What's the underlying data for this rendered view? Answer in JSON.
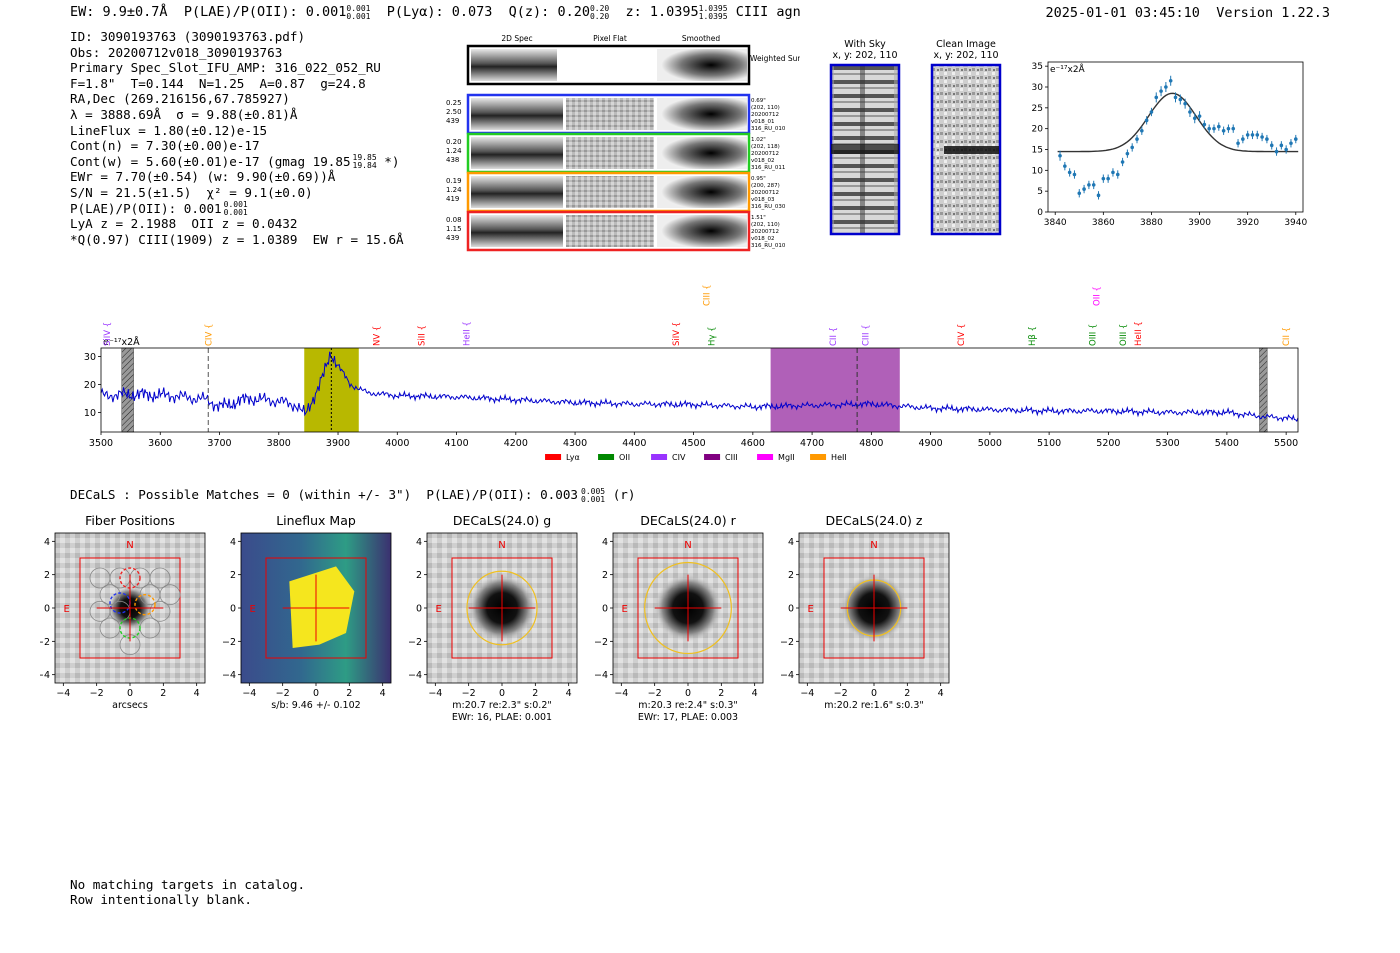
{
  "header": {
    "ew": "EW: 9.9±0.7Å",
    "plae": "P(LAE)/P(OII): 0.001",
    "plae_hi": "0.001",
    "plae_lo": "0.001",
    "plya": "P(Lyα): 0.073",
    "qz": "Q(z): 0.20",
    "qz_hi": "0.20",
    "qz_lo": "0.20",
    "z": "z: 1.0395",
    "z_hi": "1.0395",
    "z_lo": "1.0395",
    "line": "CIII",
    "agn": "agn",
    "timestamp": "2025-01-01 03:45:10",
    "version": "Version 1.22.3"
  },
  "info": [
    "ID: 3090193763 (3090193763.pdf)",
    "Obs: 20200712v018_3090193763",
    "Primary Spec_Slot_IFU_AMP: 316_022_052_RU",
    "F=1.8\"  T=0.144  N=1.25  A=0.87  g=24.8",
    "RA,Dec (269.216156,67.785927)",
    "λ = 3888.69Å  σ = 9.88(±0.81)Å",
    "LineFlux = 1.80(±0.12)e-15",
    "Cont(n) = 7.30(±0.00)e-17",
    "Cont(w) = 5.60(±0.01)e-17 (gmag 19.85",
    "EWr = 7.70(±0.54) (w: 9.90(±0.69))Å",
    "S/N = 21.5(±1.5)  χ² = 9.1(±0.0)",
    "P(LAE)/P(OII): 0.001",
    "LyA z = 2.1988  OII z = 0.0432",
    "*Q(0.97) CIII(1909) z = 1.0389  EW r = 15.6Å"
  ],
  "info_extras": {
    "gmag_hi": "19.85",
    "gmag_lo": "19.84",
    "gmag_close": "*)",
    "plae_hi": "0.001",
    "plae_lo": "0.001"
  },
  "cutouts": {
    "columns": [
      "2D Spec",
      "Pixel Flat",
      "Smoothed"
    ],
    "weighted_label": "Weighted Sum",
    "rows": [
      {
        "left": [
          "0.25",
          "2.50",
          "439"
        ],
        "right": [
          "0.69\"",
          "(202, 110)",
          "20200712",
          "v018_01",
          "316_RU_010"
        ],
        "color": "#2233ee"
      },
      {
        "left": [
          "0.20",
          "1.24",
          "438"
        ],
        "right": [
          "1.02\"",
          "(202, 118)",
          "20200712",
          "v018_02",
          "316_RU_011"
        ],
        "color": "#22cc22"
      },
      {
        "left": [
          "0.19",
          "1.24",
          "419"
        ],
        "right": [
          "0.95\"",
          "(200, 287)",
          "20200712",
          "v018_03",
          "316_RU_030"
        ],
        "color": "#ff9900"
      },
      {
        "left": [
          "0.08",
          "1.15",
          "439"
        ],
        "right": [
          "1.51\"",
          "(202, 110)",
          "20200712",
          "v018_02",
          "316_RU_010"
        ],
        "color": "#ee2222"
      }
    ]
  },
  "sky_panels": {
    "with_sky": [
      "With Sky",
      "x, y: 202, 110"
    ],
    "clean": [
      "Clean Image",
      "x, y: 202, 110"
    ]
  },
  "zoom_chart_data": {
    "type": "line",
    "ylabel": "e⁻¹⁷x2Å",
    "xlim": [
      3837,
      3943
    ],
    "ylim": [
      0,
      36
    ],
    "xticks": [
      3840,
      3860,
      3880,
      3900,
      3920,
      3940
    ],
    "yticks": [
      0,
      5,
      10,
      15,
      20,
      25,
      30,
      35
    ],
    "x": [
      3842,
      3844,
      3846,
      3848,
      3850,
      3852,
      3854,
      3856,
      3858,
      3860,
      3862,
      3864,
      3866,
      3868,
      3870,
      3872,
      3874,
      3876,
      3878,
      3880,
      3882,
      3884,
      3886,
      3888,
      3890,
      3892,
      3894,
      3896,
      3898,
      3900,
      3902,
      3904,
      3906,
      3908,
      3910,
      3912,
      3914,
      3916,
      3918,
      3920,
      3922,
      3924,
      3926,
      3928,
      3930,
      3932,
      3934,
      3936,
      3938,
      3940
    ],
    "y": [
      13.5,
      11,
      9.5,
      9,
      4.5,
      5.5,
      6.5,
      6.5,
      4,
      8,
      8,
      9.5,
      9,
      12,
      14,
      15.5,
      17.5,
      19.5,
      22,
      24,
      27.5,
      29,
      30,
      31.5,
      27.5,
      27,
      26,
      24,
      22.5,
      23,
      21,
      20,
      20,
      20.5,
      19.5,
      20,
      20,
      16.5,
      17.5,
      18.5,
      18.5,
      18.5,
      18,
      17.5,
      16,
      14.5,
      16,
      15,
      16.5,
      17.5
    ],
    "err": [
      1.2,
      1,
      1,
      1,
      1,
      1,
      1,
      1,
      1,
      1,
      1,
      1,
      1,
      1,
      1,
      1,
      1,
      1,
      1,
      1,
      1.2,
      1.2,
      1.2,
      1.2,
      1.2,
      1.2,
      1.2,
      1.2,
      1.2,
      1.2,
      1,
      1,
      1,
      1,
      1,
      1,
      1,
      1,
      1,
      1,
      1,
      1,
      1,
      1,
      1,
      1,
      1,
      1,
      1,
      1
    ],
    "model": {
      "continuum": 14.5,
      "amplitude": 14,
      "center": 3888.7,
      "sigma": 9.9
    }
  },
  "chart_data": {
    "type": "line",
    "ylabel": "e⁻¹⁷x2Å",
    "xlim": [
      3500,
      5520
    ],
    "ylim": [
      3,
      33
    ],
    "xticks": [
      3500,
      3600,
      3700,
      3800,
      3900,
      4000,
      4100,
      4200,
      4300,
      4400,
      4500,
      4600,
      4700,
      4800,
      4900,
      5000,
      5100,
      5200,
      5300,
      5400,
      5500
    ],
    "yticks": [
      10,
      20,
      30
    ],
    "series_color": "#0000cc",
    "anchors_x": [
      3500,
      3550,
      3620,
      3680,
      3700,
      3750,
      3800,
      3830,
      3845,
      3860,
      3875,
      3888,
      3900,
      3920,
      3950,
      4000,
      4100,
      4200,
      4300,
      4400,
      4500,
      4600,
      4700,
      4800,
      4900,
      5000,
      5100,
      5200,
      5300,
      5400,
      5460,
      5500,
      5520
    ],
    "anchors_y": [
      16,
      16.5,
      16,
      14.5,
      12,
      15,
      14,
      12.5,
      9,
      16,
      23,
      31,
      27,
      20,
      17,
      16,
      15.5,
      14.5,
      13.5,
      13,
      12.8,
      12,
      12.5,
      13,
      11.5,
      11,
      10.5,
      10.5,
      10,
      10,
      8.5,
      8,
      7.5
    ],
    "bands": [
      {
        "name": "lya-band",
        "x0": 3843,
        "x1": 3935,
        "color": "#b8b800"
      },
      {
        "name": "ciii-band",
        "x0": 4630,
        "x1": 4848,
        "color": "#b060b8"
      }
    ],
    "hatched": [
      {
        "x0": 3535,
        "x1": 3555
      },
      {
        "x0": 5455,
        "x1": 5468
      }
    ],
    "vlines": [
      {
        "x": 3888.7,
        "color": "#000000",
        "dash": "2,2"
      },
      {
        "x": 3681,
        "color": "#555555",
        "dash": "5,3"
      },
      {
        "x": 4776,
        "color": "#333333",
        "dash": "5,3"
      }
    ],
    "lines": [
      {
        "label": "SiIV",
        "x": 3510,
        "color": "#9933ff",
        "level": 0
      },
      {
        "label": "CIV",
        "x": 3681,
        "color": "#ff9900",
        "level": 0
      },
      {
        "label": "NV",
        "x": 3965,
        "color": "#ff0000",
        "level": 0
      },
      {
        "label": "SiII",
        "x": 4041,
        "color": "#ff0000",
        "level": 0
      },
      {
        "label": "HeII",
        "x": 4117,
        "color": "#9933ff",
        "level": 0
      },
      {
        "label": "SiIV",
        "x": 4470,
        "color": "#ff0000",
        "level": 0
      },
      {
        "label": "CIII",
        "x": 4522,
        "color": "#ff9900",
        "level": 2
      },
      {
        "label": "Hγ",
        "x": 4530,
        "color": "#008800",
        "level": 0
      },
      {
        "label": "CII",
        "x": 4735,
        "color": "#9933ff",
        "level": 0
      },
      {
        "label": "CIII",
        "x": 4790,
        "color": "#9933ff",
        "level": 0
      },
      {
        "label": "CIV",
        "x": 4951,
        "color": "#ff0000",
        "level": 0
      },
      {
        "label": "Hβ",
        "x": 5071,
        "color": "#008800",
        "level": 0
      },
      {
        "label": "OII",
        "x": 5180,
        "color": "#ff00ff",
        "level": 2
      },
      {
        "label": "OIII",
        "x": 5173,
        "color": "#008800",
        "level": 0
      },
      {
        "label": "OIII",
        "x": 5225,
        "color": "#008800",
        "level": 0
      },
      {
        "label": "HeII",
        "x": 5250,
        "color": "#ff0000",
        "level": 0
      },
      {
        "label": "CII",
        "x": 5500,
        "color": "#ff9900",
        "level": 0
      }
    ],
    "legend": [
      {
        "label": "Lyα",
        "color": "#ff0000"
      },
      {
        "label": "OII",
        "color": "#008800"
      },
      {
        "label": "CIV",
        "color": "#9933ff"
      },
      {
        "label": "CIII",
        "color": "#800080"
      },
      {
        "label": "MgII",
        "color": "#ff00ff"
      },
      {
        "label": "HeII",
        "color": "#ff9900"
      }
    ]
  },
  "decals": {
    "prefix": "DECaLS : Possible Matches = 0 (within +/- 3\")  P(LAE)/P(OII): 0.003",
    "hi": "0.005",
    "lo": "0.001",
    "suffix": "(r)"
  },
  "panels": [
    {
      "title": "Fiber Positions",
      "caption": [
        "arcsecs"
      ],
      "kind": "fiber"
    },
    {
      "title": "Lineflux Map",
      "caption": [
        "s/b: 9.46 +/- 0.102"
      ],
      "kind": "lineflux"
    },
    {
      "title": "DECaLS(24.0) g",
      "caption": [
        "m:20.7  re:2.3\"  s:0.2\"",
        "EWr: 16, PLAE: 0.001"
      ],
      "kind": "decals",
      "ellipse_r": 2.1
    },
    {
      "title": "DECaLS(24.0) r",
      "caption": [
        "m:20.3  re:2.4\"  s:0.3\"",
        "EWr: 17, PLAE: 0.003"
      ],
      "kind": "decals",
      "ellipse_r": 2.6
    },
    {
      "title": "DECaLS(24.0) z",
      "caption": [
        "m:20.2  re:1.6\"  s:0.3\""
      ],
      "kind": "decals",
      "ellipse_r": 1.6
    }
  ],
  "panel_axes": {
    "ticks": [
      -4,
      -2,
      0,
      2,
      4
    ],
    "tick_labels": [
      "−4",
      "−2",
      "0",
      "2",
      "4"
    ],
    "north": "N",
    "east": "E"
  },
  "footer": [
    "No matching targets in catalog.",
    "Row intentionally blank."
  ]
}
